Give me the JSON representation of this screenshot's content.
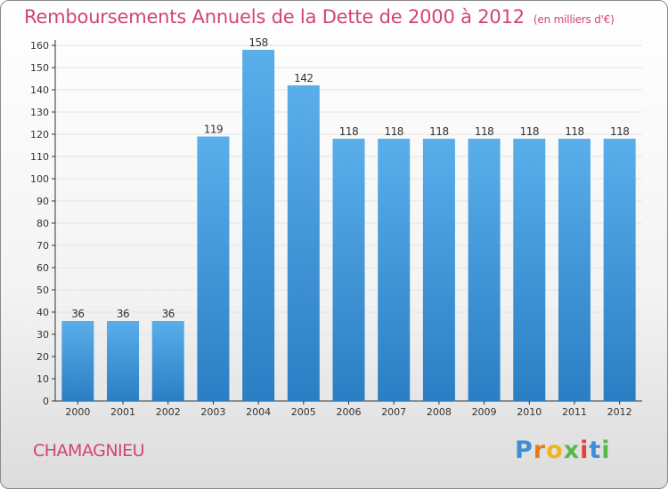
{
  "header": {
    "title": "Remboursements Annuels de la Dette de 2000 à 2012",
    "subtitle": "(en milliers d'€)"
  },
  "footer": {
    "commune": "CHAMAGNIEU",
    "logo_text": "Proxiti"
  },
  "colors": {
    "title": "#d1456e",
    "bar_light": "#5aaeea",
    "bar_dark": "#2a7ec4",
    "axis": "#333333",
    "grid": "#e4e4e4"
  },
  "chart_data": {
    "type": "bar",
    "categories": [
      "2000",
      "2001",
      "2002",
      "2003",
      "2004",
      "2005",
      "2006",
      "2007",
      "2008",
      "2009",
      "2010",
      "2011",
      "2012"
    ],
    "values": [
      36,
      36,
      36,
      119,
      158,
      142,
      118,
      118,
      118,
      118,
      118,
      118,
      118
    ],
    "data_labels": [
      "36",
      "36",
      "36",
      "119",
      "158",
      "142",
      "118",
      "118",
      "118",
      "118",
      "118",
      "118",
      "118"
    ],
    "yticks": [
      0,
      10,
      20,
      30,
      40,
      50,
      60,
      70,
      80,
      90,
      100,
      110,
      120,
      130,
      140,
      150,
      160
    ],
    "ylim": [
      0,
      160
    ],
    "grid": true
  }
}
